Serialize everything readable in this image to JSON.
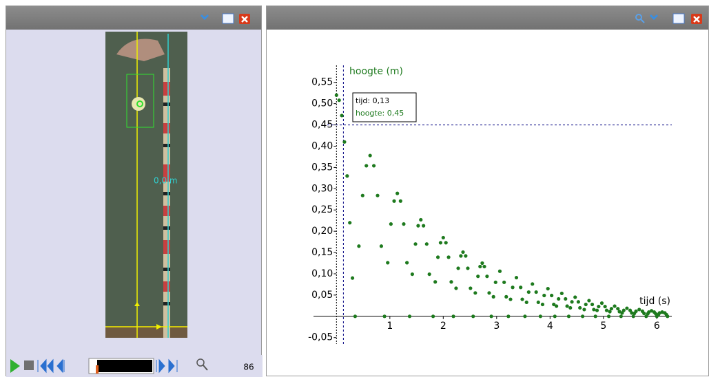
{
  "video_panel": {
    "distance_label": "0,0 m",
    "frame": "86"
  },
  "graph_panel": {
    "chart_data": {
      "type": "scatter",
      "y_label": "hoogte (m)",
      "x_label": "tijd (s)",
      "color": "#1e7a1e",
      "xlim": [
        -0.43,
        6.28
      ],
      "ylim": [
        -0.065,
        0.59
      ],
      "xticks": [
        1,
        2,
        3,
        4,
        5,
        6
      ],
      "yticks": [
        {
          "value": -0.05,
          "label": "-0,05"
        },
        {
          "value": 0.05,
          "label": "0,05"
        },
        {
          "value": 0.1,
          "label": "0,10"
        },
        {
          "value": 0.15,
          "label": "0,15"
        },
        {
          "value": 0.2,
          "label": "0,20"
        },
        {
          "value": 0.25,
          "label": "0,25"
        },
        {
          "value": 0.3,
          "label": "0,30"
        },
        {
          "value": 0.35,
          "label": "0,35"
        },
        {
          "value": 0.4,
          "label": "0,40"
        },
        {
          "value": 0.45,
          "label": "0,45"
        },
        {
          "value": 0.5,
          "label": "0,50"
        },
        {
          "value": 0.55,
          "label": "0,55"
        }
      ],
      "cursor": {
        "x": 0.13,
        "y": 0.45,
        "x_text": "tijd: 0,13",
        "y_text": "hoogte: 0,45"
      },
      "x": [
        0,
        0.05,
        0.1,
        0.15,
        0.2,
        0.25,
        0.3,
        0.35,
        0.42,
        0.49,
        0.56,
        0.63,
        0.7,
        0.77,
        0.84,
        0.9,
        0.96,
        1.02,
        1.08,
        1.14,
        1.2,
        1.26,
        1.32,
        1.37,
        1.42,
        1.48,
        1.53,
        1.58,
        1.63,
        1.69,
        1.74,
        1.81,
        1.85,
        1.9,
        1.95,
        2.0,
        2.05,
        2.1,
        2.15,
        2.19,
        2.24,
        2.28,
        2.33,
        2.37,
        2.42,
        2.46,
        2.51,
        2.56,
        2.6,
        2.65,
        2.69,
        2.73,
        2.77,
        2.82,
        2.86,
        2.9,
        2.94,
        2.98,
        3.06,
        3.14,
        3.18,
        3.22,
        3.26,
        3.3,
        3.37,
        3.45,
        3.48,
        3.53,
        3.56,
        3.6,
        3.67,
        3.74,
        3.78,
        3.82,
        3.86,
        3.89,
        3.96,
        4.03,
        4.07,
        4.09,
        4.12,
        4.16,
        4.22,
        4.29,
        4.32,
        4.35,
        4.38,
        4.41,
        4.47,
        4.53,
        4.56,
        4.61,
        4.64,
        4.67,
        4.73,
        4.79,
        4.82,
        4.85,
        4.88,
        4.91,
        4.97,
        5.03,
        5.06,
        5.1,
        5.12,
        5.15,
        5.21,
        5.27,
        5.3,
        5.33,
        5.35,
        5.38,
        5.44,
        5.5,
        5.53,
        5.56,
        5.58,
        5.61,
        5.67,
        5.73,
        5.76,
        5.8,
        5.83,
        5.85,
        5.9,
        5.95,
        5.98,
        6.0,
        6.03,
        6.05,
        6.1,
        6.15,
        6.18,
        6.2
      ],
      "values": [
        0.52,
        0.508,
        0.472,
        0.41,
        0.33,
        0.22,
        0.09,
        0,
        0.165,
        0.284,
        0.354,
        0.378,
        0.354,
        0.284,
        0.165,
        0,
        0.126,
        0.217,
        0.271,
        0.289,
        0.271,
        0.217,
        0.126,
        0,
        0.099,
        0.17,
        0.213,
        0.227,
        0.213,
        0.17,
        0.099,
        0,
        0.081,
        0.139,
        0.173,
        0.185,
        0.173,
        0.139,
        0.081,
        0,
        0.066,
        0.113,
        0.142,
        0.151,
        0.142,
        0.113,
        0.066,
        0,
        0.055,
        0.094,
        0.117,
        0.125,
        0.117,
        0.094,
        0.055,
        0,
        0.046,
        0.08,
        0.106,
        0.08,
        0.046,
        0,
        0.04,
        0.068,
        0.091,
        0.068,
        0.04,
        0,
        0.033,
        0.057,
        0.076,
        0.057,
        0.033,
        0,
        0.028,
        0.049,
        0.065,
        0.049,
        0.028,
        0,
        0.024,
        0.041,
        0.054,
        0.041,
        0.024,
        0,
        0.02,
        0.034,
        0.045,
        0.034,
        0.02,
        0,
        0.016,
        0.028,
        0.037,
        0.028,
        0.016,
        0,
        0.014,
        0.023,
        0.031,
        0.023,
        0.014,
        0,
        0.011,
        0.018,
        0.024,
        0.018,
        0.011,
        0,
        0.008,
        0.014,
        0.019,
        0.014,
        0.008,
        0,
        0.007,
        0.012,
        0.016,
        0.012,
        0.007,
        0,
        0.006,
        0.01,
        0.013,
        0.01,
        0.006,
        0,
        0.004,
        0.008,
        0.01,
        0.008,
        0.004,
        0
      ]
    }
  }
}
